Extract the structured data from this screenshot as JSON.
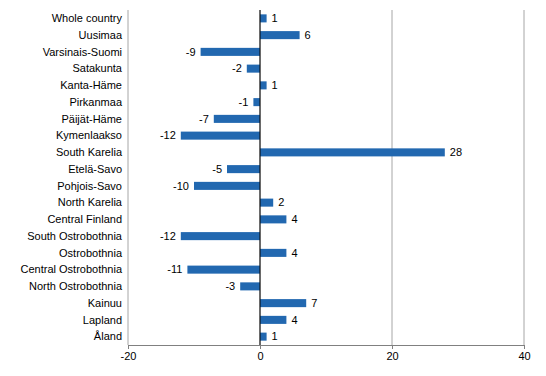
{
  "chart_data": {
    "type": "bar",
    "orientation": "horizontal",
    "categories": [
      "Whole country",
      "Uusimaa",
      "Varsinais-Suomi",
      "Satakunta",
      "Kanta-Häme",
      "Pirkanmaa",
      "Päijät-Häme",
      "Kymenlaakso",
      "South Karelia",
      "Etelä-Savo",
      "Pohjois-Savo",
      "North Karelia",
      "Central Finland",
      "South Ostrobothnia",
      "Ostrobothnia",
      "Central Ostrobothnia",
      "North Ostrobothnia",
      "Kainuu",
      "Lapland",
      "Åland"
    ],
    "values": [
      1,
      6,
      -9,
      -2,
      1,
      -1,
      -7,
      -12,
      28,
      -5,
      -10,
      2,
      4,
      -12,
      4,
      -11,
      -3,
      7,
      4,
      1
    ],
    "color": "#2268b0",
    "xlim": [
      -20,
      40
    ],
    "xticks": [
      -20,
      0,
      20,
      40
    ],
    "grid": true,
    "data_labels": true
  }
}
